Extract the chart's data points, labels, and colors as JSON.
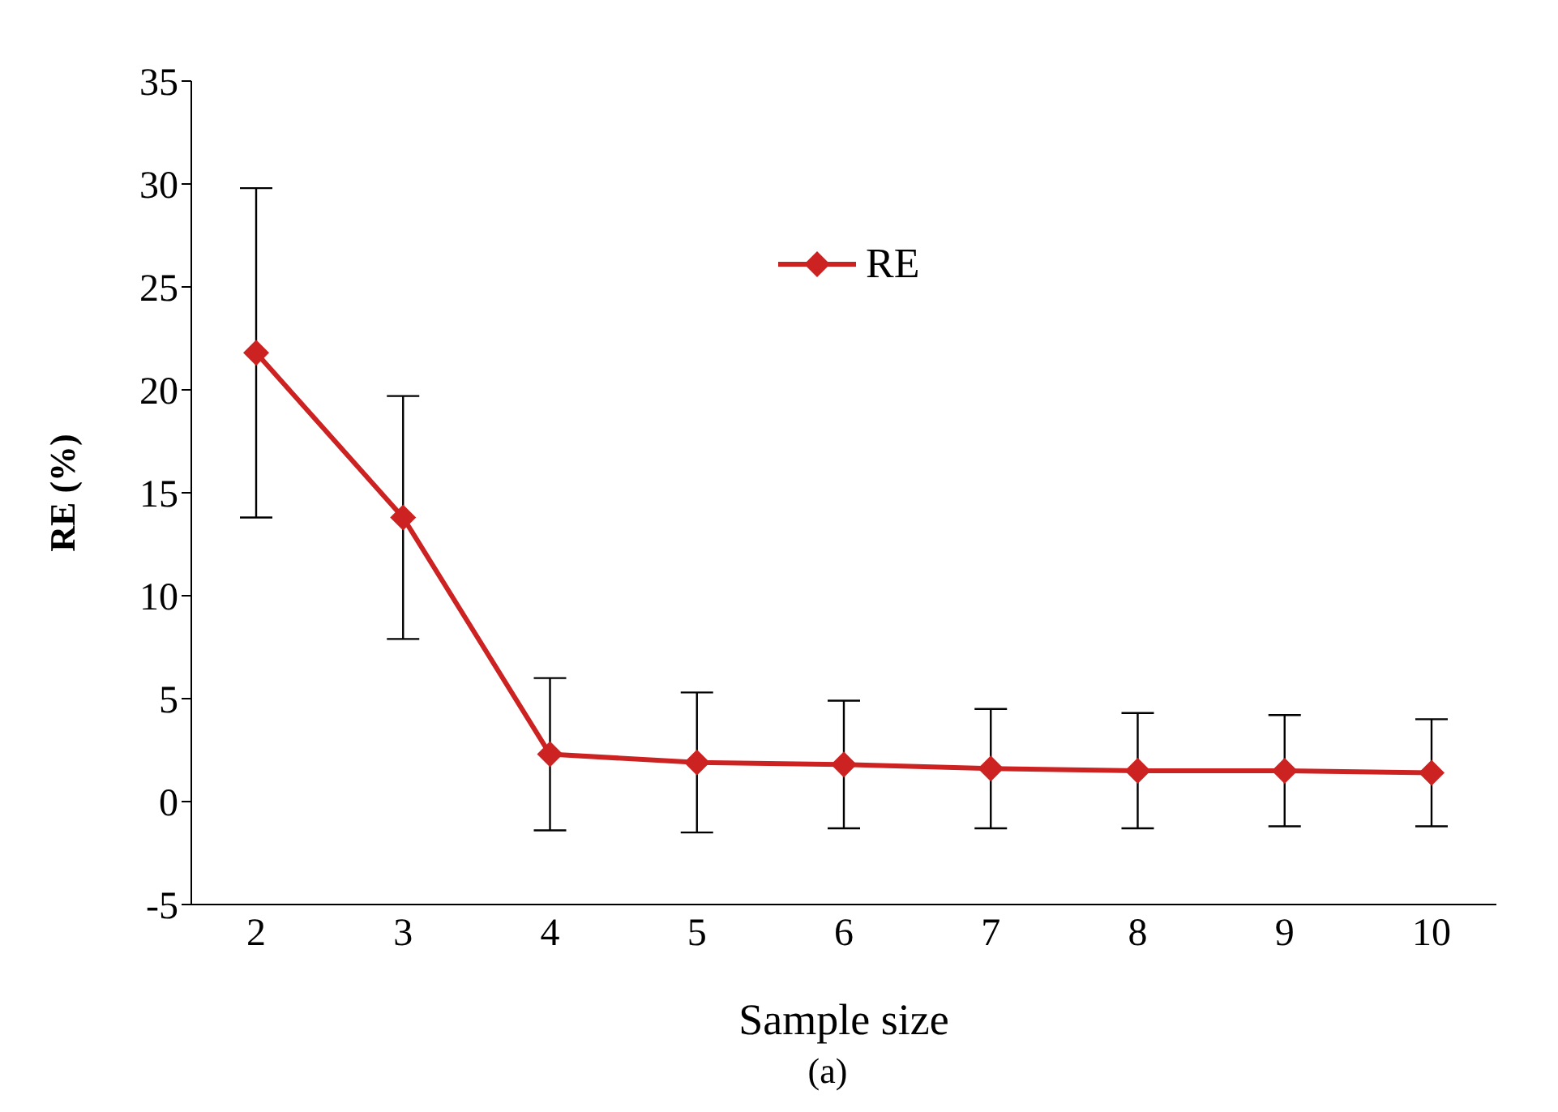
{
  "chart_data": {
    "type": "line",
    "xlabel": "Sample size",
    "ylabel": "RE (%)",
    "categories": [
      "2",
      "3",
      "4",
      "5",
      "6",
      "7",
      "8",
      "9",
      "10"
    ],
    "series": [
      {
        "name": "RE",
        "color": "#cc2222",
        "values": [
          21.8,
          13.8,
          2.3,
          1.9,
          1.8,
          1.6,
          1.5,
          1.5,
          1.4
        ],
        "errors": [
          8.0,
          5.9,
          3.7,
          3.4,
          3.1,
          2.9,
          2.8,
          2.7,
          2.6
        ]
      }
    ],
    "ylim": [
      -5,
      35
    ],
    "yticks": [
      -5,
      0,
      5,
      10,
      15,
      20,
      25,
      30,
      35
    ],
    "grid": false,
    "legend": "top",
    "marker": "diamond",
    "line_style": "solid",
    "annotations": [
      "(a)"
    ]
  }
}
